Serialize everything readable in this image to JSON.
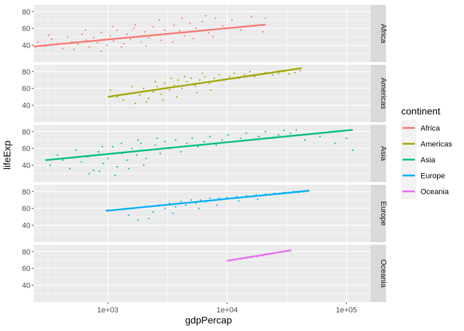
{
  "chart_data": {
    "type": "scatter",
    "title": "",
    "xlabel": "gdpPercap",
    "ylabel": "lifeExp",
    "x_scale": "log10",
    "xlim": [
      240,
      160000
    ],
    "ylim": [
      20,
      88
    ],
    "x_ticks": [
      {
        "value": 1000,
        "label": "1e+03"
      },
      {
        "value": 10000,
        "label": "1e+04"
      },
      {
        "value": 100000,
        "label": "1e+05"
      }
    ],
    "y_ticks": [
      {
        "value": 40,
        "label": "40"
      },
      {
        "value": 60,
        "label": "60"
      },
      {
        "value": 80,
        "label": "80"
      }
    ],
    "grid": true,
    "facet": "rows",
    "legend": {
      "title": "continent",
      "placement": "right",
      "entries": [
        {
          "label": "Africa",
          "color": "#F8766D"
        },
        {
          "label": "Americas",
          "color": "#A3A500"
        },
        {
          "label": "Asia",
          "color": "#00BF7D"
        },
        {
          "label": "Europe",
          "color": "#00B0F6"
        },
        {
          "label": "Oceania",
          "color": "#E76BF3"
        }
      ]
    },
    "panels": [
      {
        "name": "Africa",
        "color": "#F8766D",
        "trend": {
          "x": [
            240,
            21000
          ],
          "y": [
            38.5,
            64.5
          ]
        },
        "points": [
          [
            260,
            44
          ],
          [
            300,
            39
          ],
          [
            340,
            47
          ],
          [
            380,
            42
          ],
          [
            420,
            36
          ],
          [
            460,
            50
          ],
          [
            500,
            44
          ],
          [
            560,
            41
          ],
          [
            610,
            53
          ],
          [
            660,
            46
          ],
          [
            700,
            38
          ],
          [
            760,
            49
          ],
          [
            820,
            43
          ],
          [
            880,
            55
          ],
          [
            930,
            47
          ],
          [
            990,
            40
          ],
          [
            1050,
            51
          ],
          [
            1120,
            45
          ],
          [
            1200,
            58
          ],
          [
            1280,
            48
          ],
          [
            1360,
            42
          ],
          [
            1450,
            53
          ],
          [
            1550,
            47
          ],
          [
            1650,
            60
          ],
          [
            1780,
            50
          ],
          [
            1900,
            44
          ],
          [
            2050,
            56
          ],
          [
            2200,
            49
          ],
          [
            2400,
            62
          ],
          [
            2600,
            52
          ],
          [
            2800,
            46
          ],
          [
            3000,
            58
          ],
          [
            3300,
            54
          ],
          [
            3600,
            64
          ],
          [
            4000,
            57
          ],
          [
            4400,
            51
          ],
          [
            4900,
            66
          ],
          [
            5500,
            60
          ],
          [
            6200,
            68
          ],
          [
            7000,
            55
          ],
          [
            8000,
            72
          ],
          [
            9200,
            63
          ],
          [
            11000,
            70
          ],
          [
            13000,
            58
          ],
          [
            16000,
            74
          ],
          [
            20000,
            56
          ],
          [
            21000,
            72
          ],
          [
            320,
            52
          ],
          [
            520,
            35
          ],
          [
            880,
            33
          ],
          [
            1300,
            38
          ],
          [
            2100,
            39
          ],
          [
            3500,
            44
          ],
          [
            5200,
            48
          ],
          [
            7600,
            50
          ],
          [
            650,
            58
          ],
          [
            1100,
            62
          ],
          [
            1700,
            64
          ],
          [
            2700,
            70
          ],
          [
            4200,
            72
          ],
          [
            6600,
            75
          ]
        ]
      },
      {
        "name": "Americas",
        "color": "#A3A500",
        "trend": {
          "x": [
            1000,
            42000
          ],
          "y": [
            50,
            84
          ]
        },
        "points": [
          [
            1050,
            58
          ],
          [
            1200,
            50
          ],
          [
            1350,
            46
          ],
          [
            1500,
            54
          ],
          [
            1700,
            42
          ],
          [
            1850,
            52
          ],
          [
            2000,
            60
          ],
          [
            2200,
            48
          ],
          [
            2400,
            56
          ],
          [
            2600,
            62
          ],
          [
            2800,
            53
          ],
          [
            3000,
            66
          ],
          [
            3300,
            58
          ],
          [
            3600,
            64
          ],
          [
            3900,
            70
          ],
          [
            4200,
            60
          ],
          [
            4600,
            68
          ],
          [
            5000,
            72
          ],
          [
            5400,
            63
          ],
          [
            5900,
            70
          ],
          [
            6500,
            74
          ],
          [
            7100,
            66
          ],
          [
            7800,
            72
          ],
          [
            8600,
            76
          ],
          [
            9500,
            70
          ],
          [
            10500,
            74
          ],
          [
            11500,
            78
          ],
          [
            12500,
            72
          ],
          [
            14000,
            76
          ],
          [
            15500,
            80
          ],
          [
            17000,
            74
          ],
          [
            19000,
            77
          ],
          [
            21000,
            79
          ],
          [
            24000,
            76
          ],
          [
            27000,
            78
          ],
          [
            30000,
            80
          ],
          [
            33000,
            77
          ],
          [
            37000,
            79
          ],
          [
            41000,
            81
          ],
          [
            2100,
            44
          ],
          [
            2900,
            46
          ],
          [
            3800,
            50
          ],
          [
            5600,
            55
          ],
          [
            7300,
            58
          ],
          [
            1600,
            62
          ],
          [
            2500,
            68
          ],
          [
            3400,
            72
          ],
          [
            4400,
            74
          ],
          [
            6200,
            78
          ]
        ]
      },
      {
        "name": "Asia",
        "color": "#00BF7D",
        "trend": {
          "x": [
            300,
            113000
          ],
          "y": [
            46,
            82
          ]
        },
        "points": [
          [
            330,
            40
          ],
          [
            380,
            52
          ],
          [
            420,
            46
          ],
          [
            480,
            36
          ],
          [
            540,
            58
          ],
          [
            600,
            44
          ],
          [
            680,
            50
          ],
          [
            760,
            34
          ],
          [
            840,
            56
          ],
          [
            920,
            42
          ],
          [
            1000,
            48
          ],
          [
            1100,
            62
          ],
          [
            1200,
            38
          ],
          [
            1320,
            54
          ],
          [
            1450,
            46
          ],
          [
            1600,
            60
          ],
          [
            1750,
            52
          ],
          [
            1900,
            66
          ],
          [
            2100,
            48
          ],
          [
            2300,
            58
          ],
          [
            2500,
            64
          ],
          [
            2750,
            54
          ],
          [
            3000,
            68
          ],
          [
            3300,
            60
          ],
          [
            3700,
            70
          ],
          [
            4100,
            56
          ],
          [
            4600,
            66
          ],
          [
            5100,
            72
          ],
          [
            5700,
            62
          ],
          [
            6400,
            68
          ],
          [
            7200,
            74
          ],
          [
            8100,
            64
          ],
          [
            9100,
            70
          ],
          [
            10200,
            76
          ],
          [
            11500,
            68
          ],
          [
            13000,
            72
          ],
          [
            14500,
            78
          ],
          [
            16500,
            70
          ],
          [
            18500,
            74
          ],
          [
            21000,
            80
          ],
          [
            24000,
            72
          ],
          [
            27000,
            76
          ],
          [
            30000,
            81
          ],
          [
            34000,
            78
          ],
          [
            38000,
            82
          ],
          [
            45000,
            70
          ],
          [
            60000,
            74
          ],
          [
            80000,
            66
          ],
          [
            100000,
            72
          ],
          [
            113000,
            58
          ],
          [
            700,
            30
          ],
          [
            850,
            33
          ],
          [
            1150,
            28
          ],
          [
            1500,
            36
          ],
          [
            2000,
            40
          ],
          [
            900,
            62
          ],
          [
            1300,
            66
          ],
          [
            1800,
            70
          ],
          [
            2600,
            72
          ]
        ]
      },
      {
        "name": "Europe",
        "color": "#00B0F6",
        "trend": {
          "x": [
            960,
            49000
          ],
          "y": [
            57,
            81
          ]
        },
        "points": [
          [
            1000,
            58
          ],
          [
            1500,
            52
          ],
          [
            1800,
            46
          ],
          [
            2100,
            62
          ],
          [
            2400,
            56
          ],
          [
            2700,
            64
          ],
          [
            3000,
            60
          ],
          [
            3300,
            66
          ],
          [
            3700,
            62
          ],
          [
            4100,
            68
          ],
          [
            4500,
            64
          ],
          [
            5000,
            70
          ],
          [
            5500,
            66
          ],
          [
            6000,
            70
          ],
          [
            6600,
            68
          ],
          [
            7200,
            72
          ],
          [
            7900,
            70
          ],
          [
            8600,
            72
          ],
          [
            9300,
            71
          ],
          [
            10000,
            73
          ],
          [
            11000,
            72
          ],
          [
            12000,
            74
          ],
          [
            13000,
            73
          ],
          [
            14500,
            75
          ],
          [
            16000,
            74
          ],
          [
            17500,
            76
          ],
          [
            19000,
            75
          ],
          [
            21000,
            77
          ],
          [
            23000,
            76
          ],
          [
            25000,
            78
          ],
          [
            27500,
            77
          ],
          [
            30000,
            79
          ],
          [
            33000,
            78
          ],
          [
            36000,
            80
          ],
          [
            40000,
            79
          ],
          [
            44000,
            80
          ],
          [
            48000,
            81
          ],
          [
            2200,
            48
          ],
          [
            3500,
            54
          ],
          [
            5800,
            60
          ],
          [
            8200,
            64
          ],
          [
            12500,
            69
          ],
          [
            18000,
            71
          ]
        ]
      },
      {
        "name": "Oceania",
        "color": "#E76BF3",
        "trend": {
          "x": [
            10000,
            34500
          ],
          "y": [
            69,
            81.5
          ]
        },
        "points": [
          [
            10200,
            69
          ],
          [
            11000,
            70
          ],
          [
            12000,
            70.5
          ],
          [
            13000,
            71
          ],
          [
            14500,
            72
          ],
          [
            16000,
            73
          ],
          [
            18000,
            74
          ],
          [
            20000,
            75
          ],
          [
            22500,
            76.5
          ],
          [
            25000,
            78
          ],
          [
            28000,
            79
          ],
          [
            31000,
            80
          ],
          [
            34000,
            81
          ]
        ]
      }
    ]
  }
}
